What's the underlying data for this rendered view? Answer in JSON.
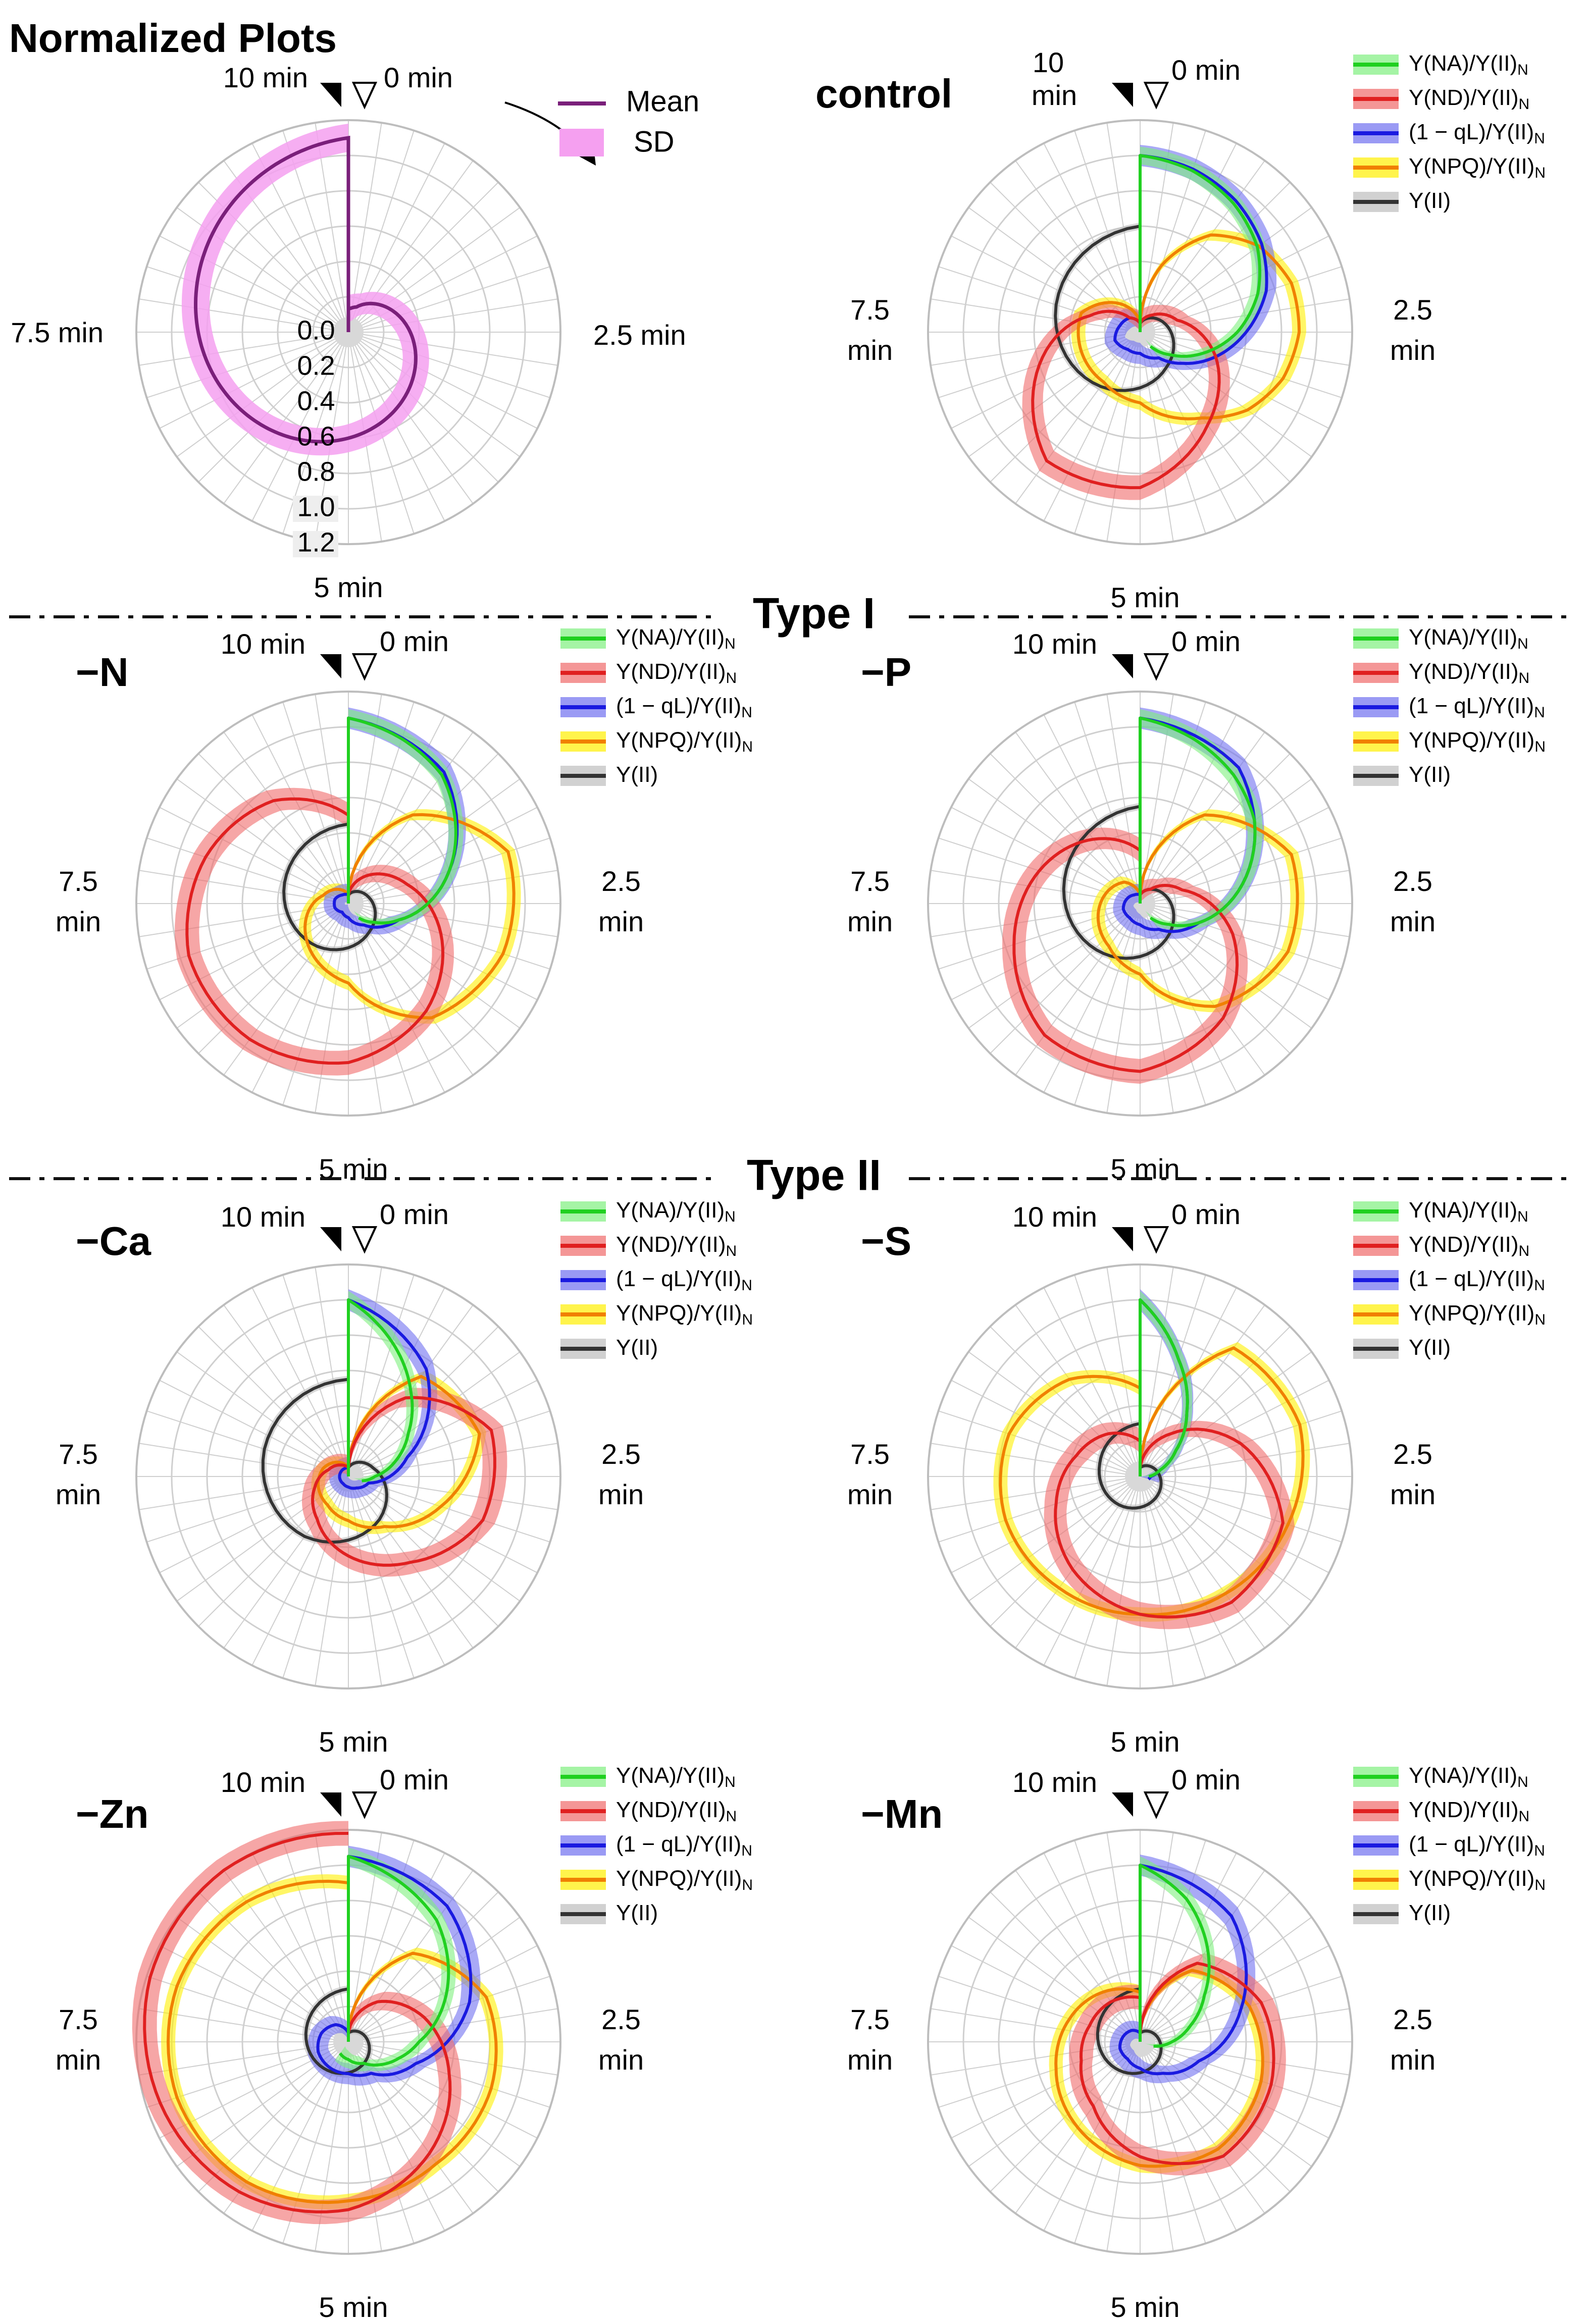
{
  "figure": {
    "title": "Normalized Plots",
    "separators": [
      "Type I",
      "Type II"
    ],
    "time_labels": {
      "t0": "0 min",
      "t10": "10 min",
      "t25": "2.5 min",
      "t5": "5 min",
      "t75": "7.5 min",
      "ten": "10",
      "min": "min",
      "v25": "2.5",
      "v75": "7.5"
    },
    "legend_key": {
      "mean": "Mean",
      "sd": "SD"
    },
    "legend_series": [
      "Y(NA)/Y(II)",
      "Y(ND)/Y(II)",
      "(1 − qL)/Y(II)",
      "Y(NPQ)/Y(II)",
      "Y(II)"
    ],
    "legend_sub": "N",
    "radial_ticks": [
      "0.0",
      "0.2",
      "0.4",
      "0.6",
      "0.8",
      "1.0",
      "1.2"
    ],
    "colors": {
      "mean": "#7a1f7a",
      "sd": "#f5a0f0",
      "na": "#20d020",
      "nd": "#e02020",
      "ql": "#1a1ae0",
      "npq": "#f08000",
      "npq_sd": "#fff000",
      "yii": "#333333",
      "grid": "#cfcfcf"
    }
  },
  "chart_data": [
    {
      "type": "polar-line",
      "panel": "Normalized Plots (key)",
      "title": "Normalized Plots",
      "angle_axis": "time (min), 0 at top, clockwise, 0–10 min",
      "radial_range": [
        0,
        1.2
      ],
      "series": [
        {
          "name": "Mean",
          "t": [
            0,
            0.5,
            1,
            1.5,
            2,
            2.5,
            3,
            3.5,
            4,
            4.5,
            5,
            5.5,
            6,
            6.5,
            7,
            7.5,
            8,
            8.5,
            9,
            9.5,
            10
          ],
          "r": [
            0.13,
            0.15,
            0.2,
            0.25,
            0.3,
            0.35,
            0.4,
            0.45,
            0.5,
            0.55,
            0.6,
            0.65,
            0.7,
            0.75,
            0.8,
            0.85,
            0.9,
            0.95,
            1.0,
            1.05,
            1.1
          ],
          "sd": 0.08
        }
      ]
    },
    {
      "type": "polar-line",
      "panel": "control",
      "series": [
        {
          "name": "Y(NA)/Y(II)N",
          "t": [
            0,
            0.5,
            1,
            1.5,
            2,
            2.5,
            3,
            3.5,
            4
          ],
          "r": [
            1.0,
            0.96,
            0.9,
            0.82,
            0.7,
            0.55,
            0.38,
            0.22,
            0.1
          ]
        },
        {
          "name": "Y(ND)/Y(II)N",
          "t": [
            0,
            1,
            2,
            3,
            4,
            5,
            6,
            7,
            8,
            9,
            10
          ],
          "r": [
            0.05,
            0.12,
            0.22,
            0.45,
            0.65,
            0.88,
            0.9,
            0.6,
            0.3,
            0.1,
            0.05
          ]
        },
        {
          "name": "(1 − qL)/Y(II)N",
          "t": [
            0,
            0.5,
            1,
            1.5,
            2,
            2.5,
            3,
            3.5,
            4,
            5,
            6,
            7,
            8,
            9,
            10
          ],
          "r": [
            1.0,
            0.97,
            0.92,
            0.85,
            0.75,
            0.6,
            0.45,
            0.3,
            0.18,
            0.12,
            0.12,
            0.15,
            0.12,
            0.1,
            0.05
          ]
        },
        {
          "name": "Y(NPQ)/Y(II)N",
          "t": [
            0,
            0.5,
            1,
            1.5,
            2,
            2.5,
            3,
            3.5,
            4,
            5,
            6,
            7,
            8,
            9,
            10
          ],
          "r": [
            0.05,
            0.4,
            0.68,
            0.83,
            0.9,
            0.9,
            0.85,
            0.75,
            0.6,
            0.4,
            0.35,
            0.35,
            0.35,
            0.2,
            0.05
          ]
        },
        {
          "name": "Y(II)",
          "t": [
            0,
            2,
            4,
            6,
            8,
            10
          ],
          "r": [
            0.05,
            0.15,
            0.25,
            0.38,
            0.5,
            0.6
          ]
        }
      ]
    },
    {
      "type": "polar-line",
      "panel": "−N",
      "series": [
        {
          "name": "Y(NA)/Y(II)N",
          "t": [
            0,
            0.5,
            1,
            1.5,
            2,
            2.5,
            3,
            3.5,
            4
          ],
          "r": [
            1.05,
            0.98,
            0.9,
            0.75,
            0.6,
            0.45,
            0.3,
            0.18,
            0.1
          ]
        },
        {
          "name": "Y(ND)/Y(II)N",
          "t": [
            0,
            1,
            2,
            3,
            4,
            5,
            6,
            7,
            8,
            9,
            10
          ],
          "r": [
            0.05,
            0.2,
            0.35,
            0.55,
            0.75,
            0.9,
            0.95,
            0.95,
            0.85,
            0.72,
            0.5
          ]
        },
        {
          "name": "(1 − qL)/Y(II)N",
          "t": [
            0,
            1,
            2,
            3,
            4,
            5,
            6,
            7,
            8,
            9,
            10
          ],
          "r": [
            1.05,
            0.92,
            0.6,
            0.3,
            0.15,
            0.08,
            0.06,
            0.08,
            0.08,
            0.06,
            0.05
          ]
        },
        {
          "name": "Y(NPQ)/Y(II)N",
          "t": [
            0,
            1,
            2,
            3,
            4,
            5,
            6,
            7,
            8,
            9,
            10
          ],
          "r": [
            0.05,
            0.62,
            0.95,
            0.92,
            0.8,
            0.45,
            0.35,
            0.25,
            0.15,
            0.1,
            0.05
          ]
        },
        {
          "name": "Y(II)",
          "t": [
            0,
            2,
            4,
            6,
            8,
            10
          ],
          "r": [
            0.05,
            0.12,
            0.2,
            0.3,
            0.38,
            0.45
          ]
        }
      ]
    },
    {
      "type": "polar-line",
      "panel": "−P",
      "series": [
        {
          "name": "Y(NA)/Y(II)N",
          "t": [
            0,
            0.5,
            1,
            1.5,
            2,
            2.5,
            3,
            3.5,
            4
          ],
          "r": [
            1.05,
            0.98,
            0.9,
            0.8,
            0.65,
            0.5,
            0.35,
            0.2,
            0.1
          ]
        },
        {
          "name": "Y(ND)/Y(II)N",
          "t": [
            0,
            1,
            2,
            3,
            4,
            5,
            6,
            7,
            8,
            9,
            10
          ],
          "r": [
            0.05,
            0.1,
            0.25,
            0.55,
            0.8,
            0.95,
            0.92,
            0.75,
            0.6,
            0.45,
            0.3
          ]
        },
        {
          "name": "(1 − qL)/Y(II)N",
          "t": [
            0,
            1,
            2,
            3,
            4,
            5,
            6,
            7,
            8,
            9,
            10
          ],
          "r": [
            1.05,
            0.95,
            0.65,
            0.35,
            0.18,
            0.12,
            0.1,
            0.1,
            0.08,
            0.06,
            0.05
          ]
        },
        {
          "name": "Y(NPQ)/Y(II)N",
          "t": [
            0,
            1,
            2,
            3,
            4,
            5,
            6,
            7,
            8,
            9,
            10
          ],
          "r": [
            0.05,
            0.62,
            0.9,
            0.88,
            0.72,
            0.4,
            0.3,
            0.25,
            0.2,
            0.15,
            0.05
          ]
        },
        {
          "name": "Y(II)",
          "t": [
            0,
            2,
            4,
            6,
            8,
            10
          ],
          "r": [
            0.05,
            0.15,
            0.25,
            0.35,
            0.45,
            0.55
          ]
        }
      ]
    },
    {
      "type": "polar-line",
      "panel": "−Ca",
      "series": [
        {
          "name": "Y(NA)/Y(II)N",
          "t": [
            0,
            0.5,
            1,
            1.5,
            2,
            2.5,
            3
          ],
          "r": [
            1.0,
            0.8,
            0.6,
            0.42,
            0.28,
            0.15,
            0.08
          ]
        },
        {
          "name": "Y(ND)/Y(II)N",
          "t": [
            0,
            1,
            2,
            3,
            4,
            5,
            6,
            7,
            8,
            9,
            10
          ],
          "r": [
            0.05,
            0.55,
            0.85,
            0.8,
            0.6,
            0.45,
            0.3,
            0.2,
            0.12,
            0.08,
            0.05
          ]
        },
        {
          "name": "(1 − qL)/Y(II)N",
          "t": [
            0,
            1,
            2,
            3,
            4,
            5,
            6,
            7,
            8,
            9,
            10
          ],
          "r": [
            1.0,
            0.75,
            0.35,
            0.12,
            0.08,
            0.06,
            0.05,
            0.05,
            0.05,
            0.05,
            0.05
          ]
        },
        {
          "name": "Y(NPQ)/Y(II)N",
          "t": [
            0,
            1,
            2,
            3,
            4,
            5,
            6,
            7,
            8,
            9,
            10
          ],
          "r": [
            0.05,
            0.7,
            0.78,
            0.55,
            0.35,
            0.25,
            0.2,
            0.18,
            0.15,
            0.1,
            0.05
          ]
        },
        {
          "name": "Y(II)",
          "t": [
            0,
            2,
            4,
            6,
            8,
            10
          ],
          "r": [
            0.05,
            0.15,
            0.3,
            0.42,
            0.5,
            0.55
          ]
        }
      ]
    },
    {
      "type": "polar-line",
      "panel": "−S",
      "series": [
        {
          "name": "Y(NA)/Y(II)N",
          "t": [
            0,
            0.5,
            1,
            1.5,
            2,
            2.5
          ],
          "r": [
            1.0,
            0.7,
            0.45,
            0.25,
            0.12,
            0.05
          ]
        },
        {
          "name": "Y(ND)/Y(II)N",
          "t": [
            0,
            1,
            2,
            3,
            4,
            5,
            6,
            7,
            8,
            9,
            10
          ],
          "r": [
            0.05,
            0.3,
            0.6,
            0.85,
            0.88,
            0.78,
            0.65,
            0.5,
            0.38,
            0.3,
            0.2
          ]
        },
        {
          "name": "(1 − qL)/Y(II)N",
          "t": [
            0,
            0.5,
            1,
            1.5,
            2,
            2.5,
            3
          ],
          "r": [
            1.0,
            0.7,
            0.45,
            0.25,
            0.12,
            0.06,
            0.05
          ]
        },
        {
          "name": "Y(NPQ)/Y(II)N",
          "t": [
            0,
            1,
            2,
            3,
            4,
            5,
            6,
            7,
            8,
            9,
            10
          ],
          "r": [
            0.05,
            0.9,
            0.95,
            0.88,
            0.82,
            0.78,
            0.78,
            0.8,
            0.78,
            0.68,
            0.5
          ]
        },
        {
          "name": "Y(II)",
          "t": [
            0,
            2,
            4,
            6,
            8,
            10
          ],
          "r": [
            0.05,
            0.1,
            0.15,
            0.2,
            0.24,
            0.3
          ]
        }
      ]
    },
    {
      "type": "polar-line",
      "panel": "−Zn",
      "series": [
        {
          "name": "Y(NA)/Y(II)N",
          "t": [
            0,
            0.5,
            1,
            1.5,
            2,
            2.5,
            3,
            3.5,
            4,
            5,
            6
          ],
          "r": [
            1.05,
            0.95,
            0.85,
            0.7,
            0.55,
            0.4,
            0.3,
            0.22,
            0.15,
            0.1,
            0.08
          ]
        },
        {
          "name": "Y(ND)/Y(II)N",
          "t": [
            0,
            1,
            2,
            3,
            4,
            5,
            6,
            7,
            8,
            9,
            10
          ],
          "r": [
            0.05,
            0.28,
            0.45,
            0.6,
            0.78,
            0.95,
            1.05,
            1.12,
            1.18,
            1.2,
            1.18
          ]
        },
        {
          "name": "(1 − qL)/Y(II)N",
          "t": [
            0,
            1,
            2,
            3,
            4,
            5,
            6,
            7,
            8,
            9,
            10
          ],
          "r": [
            1.05,
            0.95,
            0.72,
            0.4,
            0.22,
            0.18,
            0.18,
            0.18,
            0.16,
            0.12,
            0.05
          ]
        },
        {
          "name": "Y(NPQ)/Y(II)N",
          "t": [
            0,
            1,
            2,
            3,
            4,
            5,
            6,
            7,
            8,
            9,
            10
          ],
          "r": [
            0.05,
            0.62,
            0.82,
            0.85,
            0.85,
            0.9,
            0.98,
            1.02,
            1.02,
            0.98,
            0.9
          ]
        },
        {
          "name": "Y(II)",
          "t": [
            0,
            2,
            4,
            6,
            8,
            10
          ],
          "r": [
            0.05,
            0.1,
            0.15,
            0.2,
            0.25,
            0.3
          ]
        }
      ]
    },
    {
      "type": "polar-line",
      "panel": "−Mn",
      "series": [
        {
          "name": "Y(NA)/Y(II)N",
          "t": [
            0,
            0.5,
            1,
            1.5,
            2,
            2.5,
            3
          ],
          "r": [
            1.0,
            0.85,
            0.65,
            0.45,
            0.3,
            0.18,
            0.08
          ]
        },
        {
          "name": "Y(ND)/Y(II)N",
          "t": [
            0,
            1,
            2,
            3,
            4,
            5,
            6,
            7,
            8,
            9,
            10
          ],
          "r": [
            0.05,
            0.55,
            0.72,
            0.78,
            0.8,
            0.65,
            0.45,
            0.35,
            0.3,
            0.28,
            0.25
          ]
        },
        {
          "name": "(1 − qL)/Y(II)N",
          "t": [
            0,
            1,
            2,
            3,
            4,
            5,
            6,
            7,
            8,
            9,
            10
          ],
          "r": [
            1.0,
            0.88,
            0.6,
            0.35,
            0.22,
            0.15,
            0.12,
            0.12,
            0.1,
            0.08,
            0.05
          ]
        },
        {
          "name": "Y(NPQ)/Y(II)N",
          "t": [
            0,
            1,
            2,
            3,
            4,
            5,
            6,
            7,
            8,
            9,
            10
          ],
          "r": [
            0.05,
            0.5,
            0.65,
            0.72,
            0.75,
            0.7,
            0.6,
            0.5,
            0.42,
            0.35,
            0.28
          ]
        },
        {
          "name": "Y(II)",
          "t": [
            0,
            2,
            4,
            6,
            8,
            10
          ],
          "r": [
            0.05,
            0.1,
            0.15,
            0.2,
            0.25,
            0.3
          ]
        }
      ]
    }
  ]
}
